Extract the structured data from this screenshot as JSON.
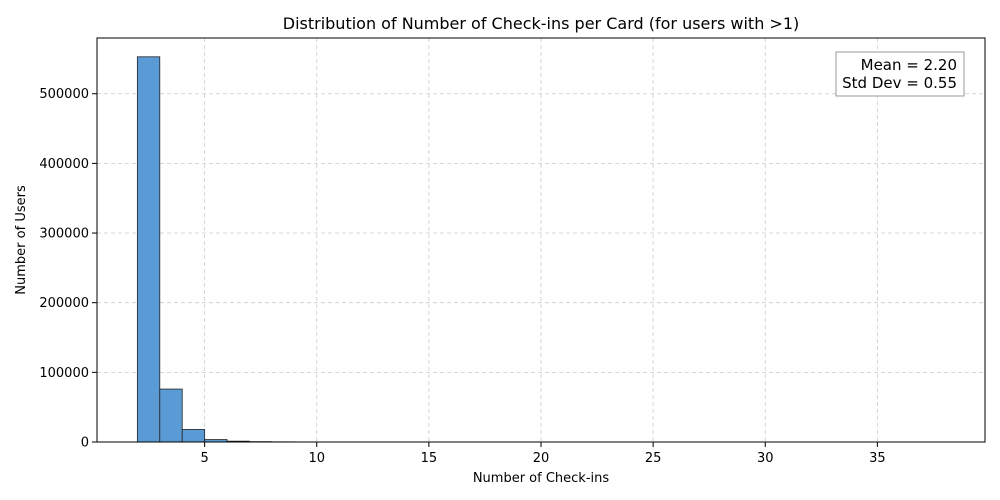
{
  "chart_data": {
    "type": "bar",
    "title": "Distribution of Number of Check-ins per Card (for users with >1)",
    "xlabel": "Number of Check-ins",
    "ylabel": "Number of Users",
    "xlim": [
      0.2,
      39.8
    ],
    "ylim": [
      0,
      580000
    ],
    "xticks": [
      5,
      10,
      15,
      20,
      25,
      30,
      35
    ],
    "yticks": [
      0,
      100000,
      200000,
      300000,
      400000,
      500000
    ],
    "grid": true,
    "bin_edges": [
      2,
      3,
      4,
      5,
      6,
      7,
      8,
      9,
      10,
      11,
      12,
      13,
      14,
      15,
      16,
      17,
      18,
      19,
      20,
      21,
      22,
      23,
      24,
      25,
      26,
      27,
      28,
      29,
      30,
      31,
      32,
      33,
      34,
      35,
      36,
      37,
      38
    ],
    "values": [
      553000,
      76000,
      18000,
      3500,
      1200,
      500,
      250,
      150,
      100,
      70,
      50,
      40,
      30,
      25,
      20,
      15,
      12,
      10,
      8,
      7,
      6,
      5,
      4,
      4,
      3,
      3,
      2,
      2,
      2,
      2,
      1,
      1,
      1,
      1,
      1,
      1
    ],
    "bar_color": "#5b9bd5",
    "annotation": {
      "lines": [
        "Mean = 2.20",
        "Std Dev = 0.55"
      ],
      "placement": "top-right"
    }
  }
}
